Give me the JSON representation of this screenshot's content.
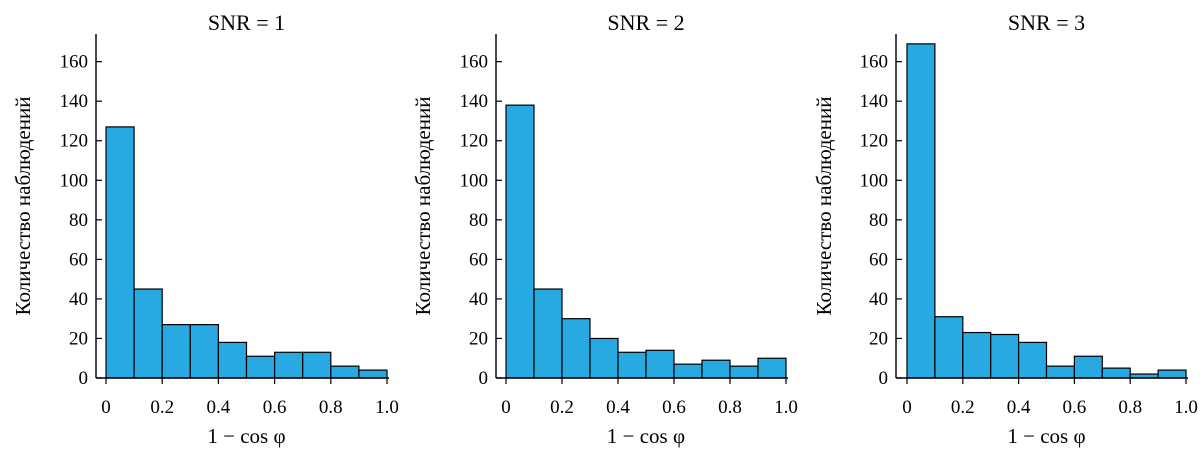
{
  "colors": {
    "bar_fill": "#29a9e1",
    "bar_edge": "#000000",
    "axis": "#000000"
  },
  "chart_data": [
    {
      "type": "bar",
      "title": "SNR = 1",
      "xlabel": "1 − cos φ",
      "ylabel": "Количество наблюдений",
      "bin_edges": [
        0,
        0.1,
        0.2,
        0.3,
        0.4,
        0.5,
        0.6,
        0.7,
        0.8,
        0.9,
        1.0
      ],
      "values": [
        127,
        45,
        27,
        27,
        18,
        11,
        13,
        13,
        6,
        4
      ],
      "xlim": [
        0,
        1.0
      ],
      "ylim": [
        0,
        175
      ],
      "xticks": [
        0,
        0.2,
        0.4,
        0.6,
        0.8,
        1.0
      ],
      "xtick_labels": [
        "0",
        "0.2",
        "0.4",
        "0.6",
        "0.8",
        "1.0"
      ],
      "yticks": [
        0,
        20,
        40,
        60,
        80,
        100,
        120,
        140,
        160
      ],
      "ytick_labels": [
        "0",
        "20",
        "40",
        "60",
        "80",
        "100",
        "120",
        "140",
        "160"
      ],
      "grid": false,
      "legend": "none"
    },
    {
      "type": "bar",
      "title": "SNR = 2",
      "xlabel": "1 − cos φ",
      "ylabel": "Количество наблюдений",
      "bin_edges": [
        0,
        0.1,
        0.2,
        0.3,
        0.4,
        0.5,
        0.6,
        0.7,
        0.8,
        0.9,
        1.0
      ],
      "values": [
        138,
        45,
        30,
        20,
        13,
        14,
        7,
        9,
        6,
        10
      ],
      "xlim": [
        0,
        1.0
      ],
      "ylim": [
        0,
        175
      ],
      "xticks": [
        0,
        0.2,
        0.4,
        0.6,
        0.8,
        1.0
      ],
      "xtick_labels": [
        "0",
        "0.2",
        "0.4",
        "0.6",
        "0.8",
        "1.0"
      ],
      "yticks": [
        0,
        20,
        40,
        60,
        80,
        100,
        120,
        140,
        160
      ],
      "ytick_labels": [
        "0",
        "20",
        "40",
        "60",
        "80",
        "100",
        "120",
        "140",
        "160"
      ],
      "grid": false,
      "legend": "none"
    },
    {
      "type": "bar",
      "title": "SNR = 3",
      "xlabel": "1 − cos φ",
      "ylabel": "Количество наблюдений",
      "bin_edges": [
        0,
        0.1,
        0.2,
        0.3,
        0.4,
        0.5,
        0.6,
        0.7,
        0.8,
        0.9,
        1.0
      ],
      "values": [
        169,
        31,
        23,
        22,
        18,
        6,
        11,
        5,
        2,
        4
      ],
      "xlim": [
        0,
        1.0
      ],
      "ylim": [
        0,
        175
      ],
      "xticks": [
        0,
        0.2,
        0.4,
        0.6,
        0.8,
        1.0
      ],
      "xtick_labels": [
        "0",
        "0.2",
        "0.4",
        "0.6",
        "0.8",
        "1.0"
      ],
      "yticks": [
        0,
        20,
        40,
        60,
        80,
        100,
        120,
        140,
        160
      ],
      "ytick_labels": [
        "0",
        "20",
        "40",
        "60",
        "80",
        "100",
        "120",
        "140",
        "160"
      ],
      "grid": false,
      "legend": "none"
    }
  ]
}
